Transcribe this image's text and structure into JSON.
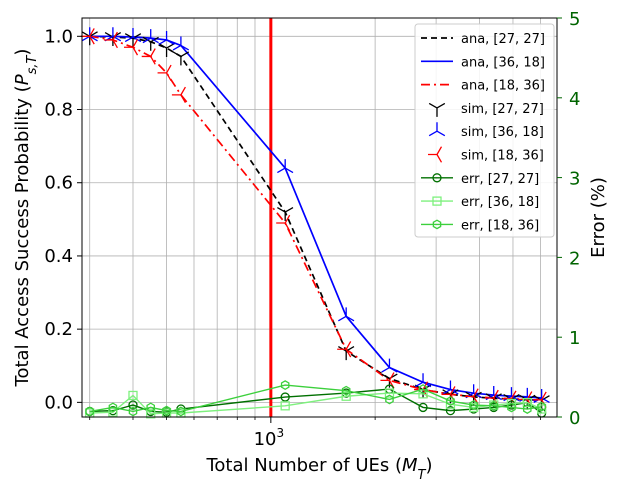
{
  "chart_data": {
    "type": "line",
    "xlabel": "Total Number of UEs ($M_T$)",
    "ylabel_left": "Total Access Success Probability ($P_{s,T}$)",
    "ylabel_right": "Error (%)",
    "xscale": "log",
    "xlim": [
      285,
      6700
    ],
    "ylim_left": [
      -0.04,
      1.05
    ],
    "ylim_right": [
      0,
      5
    ],
    "x_tick_labels": [
      {
        "value": 1000,
        "label": "10",
        "exp": "3"
      }
    ],
    "y_ticks_left": [
      "0.0",
      "0.2",
      "0.4",
      "0.6",
      "0.8",
      "1.0"
    ],
    "y_ticks_right": [
      "0",
      "1",
      "2",
      "3",
      "4",
      "5"
    ],
    "grid": true,
    "vline": {
      "x": 1000,
      "color": "#ff0000"
    },
    "legend_position": "upper-right",
    "colors": {
      "black": "#000000",
      "blue": "#0000ff",
      "red": "#ff0000",
      "green_dark": "#007000",
      "green_light": "#7ef07e",
      "green_mid": "#3cd03c",
      "right_axis": "#006400"
    },
    "series": [
      {
        "name": "ana, [27, 27]",
        "kind": "ana",
        "color": "#000000",
        "dash": "6,4",
        "x": [
          300,
          350,
          400,
          450,
          500,
          550,
          1100,
          1650,
          2200,
          2750,
          3300,
          3850,
          4400,
          4950,
          5500,
          6050
        ],
        "y": [
          1.0,
          0.998,
          0.995,
          0.985,
          0.968,
          0.945,
          0.52,
          0.14,
          0.065,
          0.035,
          0.022,
          0.015,
          0.011,
          0.009,
          0.007,
          0.006
        ]
      },
      {
        "name": "ana, [36, 18]",
        "kind": "ana",
        "color": "#0000ff",
        "dash": "",
        "x": [
          300,
          350,
          400,
          450,
          500,
          550,
          1100,
          1650,
          2200,
          2750,
          3300,
          3850,
          4400,
          4950,
          5500,
          6050
        ],
        "y": [
          1.0,
          1.0,
          0.998,
          0.995,
          0.99,
          0.975,
          0.64,
          0.235,
          0.095,
          0.055,
          0.035,
          0.025,
          0.02,
          0.017,
          0.015,
          0.012
        ]
      },
      {
        "name": "ana, [18, 36]",
        "kind": "ana",
        "color": "#ff0000",
        "dash": "9,4,2,4",
        "x": [
          300,
          350,
          400,
          450,
          500,
          550,
          1100,
          1650,
          2200,
          2750,
          3300,
          3850,
          4400,
          4950,
          5500,
          6050
        ],
        "y": [
          1.0,
          0.99,
          0.97,
          0.945,
          0.9,
          0.84,
          0.49,
          0.145,
          0.06,
          0.035,
          0.022,
          0.016,
          0.012,
          0.01,
          0.008,
          0.007
        ]
      },
      {
        "name": "sim, [27, 27]",
        "kind": "sim",
        "color": "#000000",
        "marker": "down",
        "x": [
          300,
          350,
          400,
          450,
          500,
          550,
          1100,
          1650,
          2200,
          2750,
          3300,
          3850,
          4400,
          4950,
          5500,
          6050
        ],
        "y": [
          1.0,
          0.998,
          0.995,
          0.985,
          0.968,
          0.945,
          0.52,
          0.14,
          0.065,
          0.035,
          0.022,
          0.015,
          0.011,
          0.009,
          0.007,
          0.006
        ]
      },
      {
        "name": "sim, [36, 18]",
        "kind": "sim",
        "color": "#0000ff",
        "marker": "up",
        "x": [
          300,
          350,
          400,
          450,
          500,
          550,
          1100,
          1650,
          2200,
          2750,
          3300,
          3850,
          4400,
          4950,
          5500,
          6050
        ],
        "y": [
          1.0,
          1.0,
          0.998,
          0.995,
          0.99,
          0.975,
          0.64,
          0.235,
          0.095,
          0.055,
          0.035,
          0.025,
          0.02,
          0.017,
          0.015,
          0.012
        ]
      },
      {
        "name": "sim, [18, 36]",
        "kind": "sim",
        "color": "#ff0000",
        "marker": "left",
        "x": [
          300,
          350,
          400,
          450,
          500,
          550,
          1100,
          1650,
          2200,
          2750,
          3300,
          3850,
          4400,
          4950,
          5500,
          6050
        ],
        "y": [
          1.0,
          0.99,
          0.97,
          0.945,
          0.9,
          0.84,
          0.49,
          0.145,
          0.06,
          0.035,
          0.022,
          0.016,
          0.012,
          0.01,
          0.008,
          0.007
        ]
      },
      {
        "name": "err, [27, 27]",
        "kind": "err",
        "color": "#007000",
        "marker": "circle",
        "x": [
          300,
          350,
          400,
          450,
          500,
          550,
          1100,
          1650,
          2200,
          2750,
          3300,
          3850,
          4400,
          4950,
          5500,
          6050
        ],
        "y": [
          0.07,
          0.08,
          0.15,
          0.07,
          0.06,
          0.1,
          0.25,
          0.3,
          0.35,
          0.12,
          0.08,
          0.1,
          0.12,
          0.15,
          0.18,
          0.05
        ]
      },
      {
        "name": "err, [36, 18]",
        "kind": "err",
        "color": "#7ef07e",
        "marker": "square",
        "x": [
          300,
          350,
          400,
          450,
          500,
          550,
          1100,
          1650,
          2200,
          2750,
          3300,
          3850,
          4400,
          4950,
          5500,
          6050
        ],
        "y": [
          0.05,
          0.06,
          0.27,
          0.04,
          0.05,
          0.05,
          0.14,
          0.26,
          0.3,
          0.29,
          0.16,
          0.12,
          0.15,
          0.17,
          0.18,
          0.1
        ]
      },
      {
        "name": "err, [18, 36]",
        "kind": "err",
        "color": "#3cd03c",
        "marker": "hexagon",
        "x": [
          300,
          350,
          400,
          450,
          500,
          550,
          1100,
          1650,
          2200,
          2750,
          3300,
          3850,
          4400,
          4950,
          5500,
          6050
        ],
        "y": [
          0.07,
          0.12,
          0.07,
          0.12,
          0.08,
          0.07,
          0.4,
          0.33,
          0.22,
          0.35,
          0.2,
          0.15,
          0.14,
          0.12,
          0.1,
          0.13
        ]
      }
    ]
  }
}
